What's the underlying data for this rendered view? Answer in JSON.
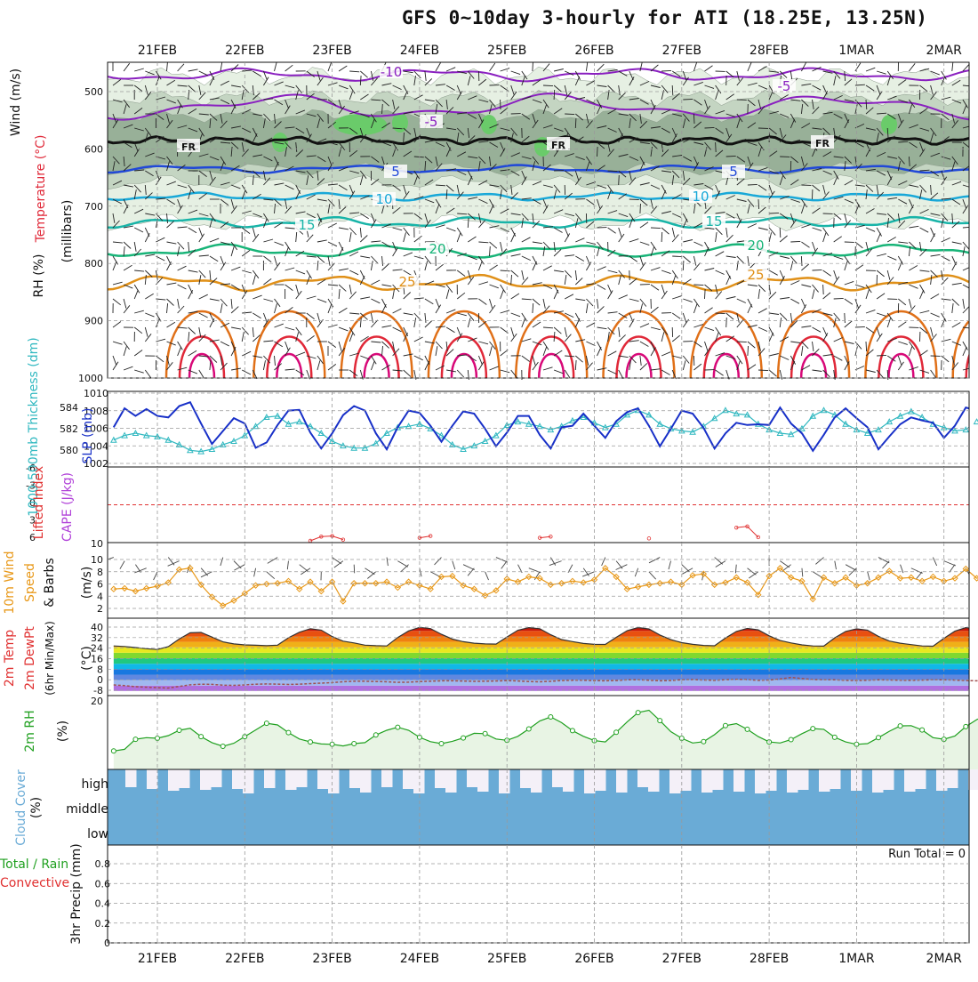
{
  "title": "GFS 0~10day 3-hourly for ATI (18.25E, 13.25N)",
  "dates": [
    "21FEB",
    "22FEB",
    "23FEB",
    "24FEB",
    "25FEB",
    "26FEB",
    "27FEB",
    "28FEB",
    "1MAR",
    "2MAR"
  ],
  "colors": {
    "grid": "#9a9a9a",
    "rh_light": "#e6f0e3",
    "rh_mid": "#c4d5c2",
    "rh_dark": "#98b098",
    "rh_green": "#6acb6a",
    "temp_purple": "#8a20c0",
    "temp_blue": "#2048d8",
    "temp_cyan": "#18a8d8",
    "temp_teal": "#18b4a8",
    "temp_green": "#18b478",
    "temp_orange": "#e09018",
    "temp_dark_orange": "#e07018",
    "temp_red": "#e02838",
    "temp_magenta": "#d80878",
    "slp": "#1830c8",
    "thickness": "#30b8c0",
    "lifted": "#e03030",
    "cape": "#b040d8",
    "wind10": "#e89818",
    "rh2m": "#20a020",
    "rh2m_fill": "#e8f4e4",
    "cloud": "#6aabd6",
    "cloud_bg": "#f4f0f8",
    "precip_total": "#20a020",
    "precip_conv": "#e03030"
  },
  "panels": {
    "upper_air": {
      "ylabel_wind": "Wind (m/s)",
      "ylabel_temp": "Temperature (°C)",
      "ylabel_rh": "RH (%)",
      "ylabel_units": "(millibars)",
      "yticks": [
        "500",
        "600",
        "700",
        "800",
        "900",
        "1000"
      ],
      "contour_labels": [
        "-10",
        "-5",
        "FR",
        "5",
        "10",
        "15",
        "20",
        "25"
      ]
    },
    "slp_thickness": {
      "ylabel_thk": "1000-500mb Thickness (dm)",
      "ylabel_slp": "SLP (mb)",
      "yticks_left": [
        "584",
        "582",
        "580"
      ],
      "yticks_right": [
        "1010",
        "1008",
        "1006",
        "1004",
        "1002"
      ]
    },
    "stability": {
      "ylabel_li": "Lifted Index",
      "ylabel_cape": "CAPE (J/kg)",
      "yticks_left": [
        "-6",
        "-3",
        "0",
        "3",
        "6"
      ]
    },
    "wind10m": {
      "ylabel_a": "10m Wind",
      "ylabel_b": "Speed",
      "ylabel_c": "& Barbs",
      "ylabel_units": "(m/s)",
      "yticks": [
        "10",
        "8",
        "6",
        "4",
        "2"
      ]
    },
    "temp2m": {
      "ylabel_a": "2m Temp",
      "ylabel_b": "2m DewPt",
      "ylabel_c": "(6hr Min/Max)",
      "ylabel_units": "(°C)",
      "yticks": [
        "40",
        "32",
        "24",
        "16",
        "8",
        "0",
        "-8"
      ]
    },
    "rh2m": {
      "ylabel": "2m RH",
      "ylabel_units": "(%)",
      "yticks": [
        "20"
      ]
    },
    "cloud": {
      "ylabel": "Cloud Cover",
      "ylabel_units": "(%)",
      "levels": [
        "high",
        "middle",
        "low"
      ]
    },
    "precip": {
      "ylabel_a": "Total / Rain",
      "ylabel_b": "Convective",
      "ylabel_c": "3hr Precip (mm)",
      "yticks": [
        "0.8",
        "0.6",
        "0.4",
        "0.2",
        "0"
      ],
      "run_total": "Run Total = 0"
    }
  },
  "chart_data": [
    {
      "type": "line",
      "name": "slp",
      "x_unit": "3-hour steps from 20 Feb 12 UTC",
      "values": [
        1006,
        1008.5,
        1007.5,
        1008.4,
        1007.5,
        1007.3,
        1008.8,
        1009.3,
        1006.5,
        1003.8,
        1005.5,
        1007.2,
        1006.5,
        1003.3,
        1004,
        1006.3,
        1008.2,
        1008.3,
        1005.3,
        1003.2,
        1005.2,
        1007.6,
        1008.8,
        1008.2,
        1005.2,
        1003.1,
        1006,
        1008.2,
        1007.9,
        1006.2,
        1004.1,
        1006.2,
        1008.1,
        1007.8,
        1005.8,
        1003.5,
        1005.3,
        1007.5,
        1007.5,
        1005,
        1003.2,
        1006,
        1006.2,
        1007.8,
        1006.2,
        1004.6,
        1006.8,
        1008,
        1008.5,
        1006.2,
        1003.5,
        1005.8,
        1008.2,
        1007.8,
        1005.9,
        1003.2,
        1005.2,
        1006.6,
        1006.3,
        1006.4,
        1006.3,
        1008.6,
        1006.5,
        1005.2,
        1002.9,
        1005,
        1007.3,
        1008.5,
        1007.2,
        1006,
        1003.1,
        1004.8,
        1006.4,
        1007.3,
        1006.9,
        1006.6,
        1004.6,
        1006.2,
        1008.6,
        1008.2,
        1005.2,
        1002.2,
        1004.1,
        1006.4,
        1005.2,
        1005.8
      ],
      "ylim": [
        1001,
        1010.5
      ]
    },
    {
      "type": "line",
      "name": "thickness",
      "values": [
        581.2,
        581.6,
        581.8,
        581.6,
        581.5,
        581.2,
        580.8,
        580.3,
        580.2,
        580.4,
        580.8,
        581.1,
        581.6,
        582.4,
        583.2,
        583.3,
        582.6,
        582.8,
        582.4,
        581.8,
        581.1,
        580.7,
        580.5,
        580.5,
        580.9,
        581.8,
        582.3,
        582.4,
        582.6,
        582.2,
        581.6,
        580.8,
        580.4,
        580.7,
        581.1,
        581.6,
        582.5,
        582.8,
        582.6,
        582.4,
        582.1,
        582.4,
        582.9,
        583.2,
        582.7,
        582.3,
        582.6,
        583.4,
        583.8,
        583.4,
        582.6,
        582.2,
        582,
        581.9,
        582.4,
        583.1,
        583.8,
        583.5,
        583.4,
        582.6,
        582.1,
        581.8,
        581.7,
        582.2,
        583.3,
        583.8,
        583.4,
        582.6,
        582.1,
        581.8,
        582.1,
        582.8,
        583.3,
        583.7,
        583.2,
        582.6,
        582.3,
        582,
        582.1,
        582.8,
        583.6,
        584.1,
        583.6,
        582.7,
        582.4,
        582.1
      ]
    },
    {
      "type": "line",
      "name": "lifted_index",
      "points": [
        [
          18,
          6
        ],
        [
          19,
          5.3
        ],
        [
          20,
          5.2
        ],
        [
          21,
          5.8
        ],
        [
          28,
          5.5
        ],
        [
          29,
          5.2
        ],
        [
          39,
          5.5
        ],
        [
          40,
          5.3
        ],
        [
          49,
          5.6
        ],
        [
          57,
          3.8
        ],
        [
          58,
          3.6
        ],
        [
          59,
          5.4
        ],
        [
          85,
          5.2
        ],
        [
          86,
          3.7
        ],
        [
          87,
          3.4
        ],
        [
          88,
          5.6
        ]
      ],
      "ylim": [
        -6,
        6
      ]
    },
    {
      "type": "line",
      "name": "wind10m_speed",
      "values": [
        3.8,
        3.9,
        3.5,
        3.9,
        4.2,
        4.7,
        6.5,
        6.7,
        4.4,
        2.7,
        1.5,
        2.2,
        3.2,
        4.3,
        4.5,
        4.6,
        4.9,
        3.8,
        4.8,
        3.5,
        4.8,
        2.1,
        4.6,
        4.6,
        4.6,
        4.8,
        4,
        4.8,
        4.3,
        3.8,
        5.5,
        5.6,
        4.3,
        3.8,
        2.9,
        3.6,
        5.2,
        4.8,
        5.5,
        5.3,
        4.4,
        4.6,
        4.9,
        4.7,
        5.1,
        6.7,
        5.5,
        3.8,
        4.1,
        4.4,
        4.6,
        4.8,
        4.4,
        5.7,
        5.9,
        4.4,
        4.7,
        5.4,
        4.7,
        3,
        5.6,
        6.7,
        5.4,
        4.9,
        2.4,
        5.4,
        4.6,
        5.4,
        4.3,
        4.6,
        5.4,
        6.3,
        5.3,
        5.4,
        4.9,
        5.5,
        4.9,
        5.3,
        6.6,
        5.3,
        5.5,
        5.8,
        6.2,
        4.8,
        5.3,
        5.5
      ],
      "ylim": [
        0,
        10
      ]
    },
    {
      "type": "area",
      "name": "temp2m",
      "values": [
        25,
        24.6,
        23.8,
        23,
        22.4,
        24.5,
        30.1,
        34.6,
        34.9,
        31.5,
        28,
        26.5,
        25.8,
        25.5,
        25.2,
        25.6,
        31,
        35,
        37.6,
        36.6,
        31.9,
        28.5,
        27.2,
        25.6,
        25.2,
        25,
        31.2,
        36,
        38.6,
        37.7,
        33.5,
        30,
        28.1,
        27,
        26.5,
        26.4,
        31.6,
        36.5,
        38.4,
        37.6,
        33.2,
        29.7,
        28.2,
        26.8,
        26.2,
        26.1,
        31.3,
        36.2,
        38.5,
        37.4,
        33,
        29.6,
        27.4,
        26.2,
        25.4,
        25.1,
        30.8,
        35.6,
        37.8,
        36.8,
        32.4,
        29,
        27.2,
        25.8,
        25,
        24.9,
        30.9,
        35.6,
        37.5,
        36.6,
        32,
        28.6,
        27,
        26,
        25,
        24.8,
        30.6,
        35.8,
        38.4,
        37.6,
        33,
        29.5,
        28,
        26.8,
        26.4,
        25.8
      ],
      "dewpoint": [
        -3.5,
        -4,
        -4.8,
        -5.2,
        -5.5,
        -5.8,
        -4.6,
        -3.4,
        -3,
        -3.1,
        -3.7,
        -3.8,
        -3.5,
        -3,
        -2.8,
        -2.9,
        -3.2,
        -3,
        -2.5,
        -2.2,
        -1.8,
        -1.2,
        -0.8,
        -0.8,
        -1,
        -1.2,
        -1.6,
        -1.5,
        -1.1,
        -0.8,
        -0.5,
        -0.5,
        -0.7,
        -0.9,
        -0.8,
        -0.6,
        -0.4,
        -0.6,
        -1,
        -1.2,
        -0.9,
        -0.3,
        -0.1,
        -0.1,
        -0.4,
        -0.5,
        -0.3,
        0.2,
        0.3,
        -0.1,
        -0.5,
        -0.3,
        0.3,
        0.4,
        0.1,
        -0.2,
        0.3,
        0.6,
        0.4,
        -0.2,
        0.1,
        0.8,
        2,
        1.2,
        0.4,
        0.3,
        0.2,
        -0.2,
        -0.3,
        -0.1,
        0.2,
        0.1,
        -0.1,
        -0.2,
        0,
        0.3,
        0.2,
        0,
        -0.3,
        -0.5,
        -0.3,
        0,
        0.2,
        -0.1,
        -0.3,
        -0.2
      ],
      "ylim": [
        -10,
        44
      ]
    },
    {
      "type": "line",
      "name": "rh2m",
      "values": [
        5,
        5.5,
        8.5,
        9,
        8.8,
        9.6,
        11.2,
        11.8,
        9.3,
        7.5,
        6.4,
        7.3,
        9.3,
        11.3,
        13.3,
        12.8,
        10.5,
        8.6,
        7.7,
        7.1,
        7,
        6.5,
        7.2,
        7.5,
        9.8,
        11.2,
        12.1,
        11.2,
        9.1,
        7.8,
        7.2,
        7.9,
        8.9,
        10.3,
        10.2,
        8.6,
        8.2,
        9.4,
        11.6,
        14,
        15.2,
        13.5,
        11.1,
        9.4,
        8.1,
        7.7,
        10.6,
        13.7,
        16.5,
        17.2,
        14.1,
        10.8,
        8.8,
        7.4,
        7.8,
        9.9,
        12.6,
        13.2,
        11.5,
        9.3,
        7.7,
        7.4,
        8.4,
        10.2,
        11.7,
        11.5,
        9.1,
        7.7,
        7,
        7.2,
        9,
        10.9,
        12.5,
        12.6,
        11.3,
        9,
        8.5,
        9.5,
        12.3,
        14.4,
        15.8,
        14.9,
        11.4,
        8.7,
        6.9,
        6.8
      ],
      "ylim": [
        0,
        20
      ]
    },
    {
      "type": "bar",
      "name": "precip_3hr",
      "values": [],
      "ylim": [
        0,
        1
      ]
    }
  ]
}
